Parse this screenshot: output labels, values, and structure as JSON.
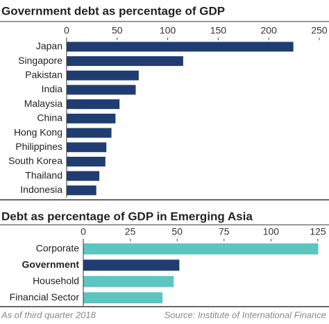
{
  "chart_data": [
    {
      "type": "bar",
      "orientation": "horizontal",
      "title": "Government debt as percentage of GDP",
      "categories": [
        "Japan",
        "Singapore",
        "Pakistan",
        "India",
        "Malaysia",
        "China",
        "Hong Kong",
        "Philippines",
        "South Korea",
        "Thailand",
        "Indonesia"
      ],
      "values": [
        224,
        115,
        71,
        68,
        52,
        48,
        44,
        39,
        38,
        32,
        29
      ],
      "colors": [
        "#1f3d70",
        "#1f3d70",
        "#1f3d70",
        "#1f3d70",
        "#1f3d70",
        "#1f3d70",
        "#1f3d70",
        "#1f3d70",
        "#1f3d70",
        "#1f3d70",
        "#1f3d70"
      ],
      "xlim": [
        0,
        250
      ],
      "xticks": [
        0,
        50,
        100,
        150,
        200,
        250
      ]
    },
    {
      "type": "bar",
      "orientation": "horizontal",
      "title": "Debt as percentage of GDP in Emerging Asia",
      "categories": [
        "Corporate",
        "Government",
        "Household",
        "Financial Sector"
      ],
      "values": [
        125,
        51,
        48,
        42
      ],
      "colors": [
        "#5cc5bf",
        "#1f3d70",
        "#5cc5bf",
        "#5cc5bf"
      ],
      "highlight": [
        false,
        true,
        false,
        false
      ],
      "xlim": [
        0,
        125
      ],
      "xticks": [
        0,
        25,
        50,
        75,
        100,
        125
      ]
    }
  ],
  "footer": {
    "note": "As of third quarter 2018",
    "source": "Source: Institute of International Finance"
  }
}
